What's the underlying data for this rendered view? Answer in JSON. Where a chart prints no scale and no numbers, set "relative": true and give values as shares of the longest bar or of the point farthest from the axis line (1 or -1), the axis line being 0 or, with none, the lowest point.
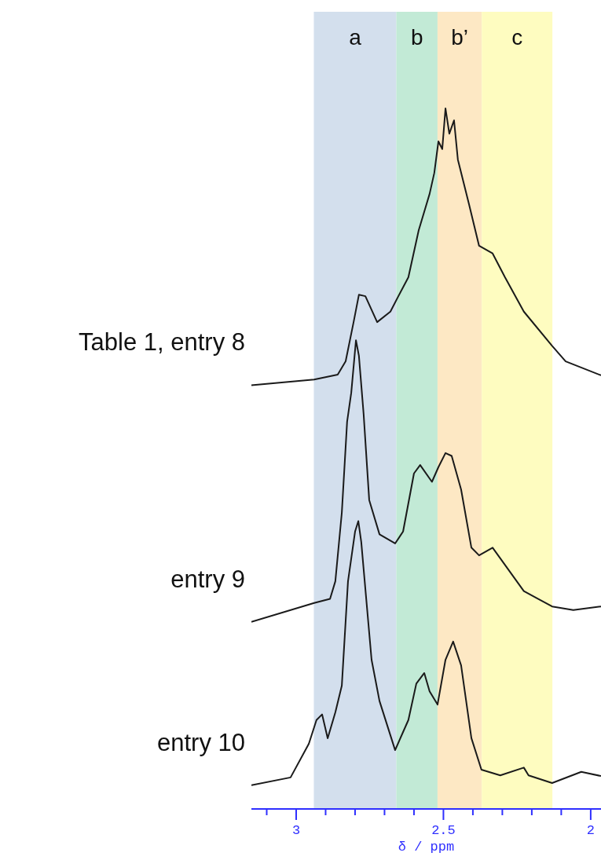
{
  "chart_data": {
    "type": "line",
    "relative": true,
    "xlabel": "δ / ppm",
    "xlim": [
      3.152,
      1.965
    ],
    "xticks": [
      {
        "value": 3.1,
        "label": null
      },
      3,
      {
        "value": 2.9,
        "label": null
      },
      {
        "value": 2.8,
        "label": null
      },
      {
        "value": 2.7,
        "label": null
      },
      {
        "value": 2.6,
        "label": null
      },
      2.5,
      {
        "value": 2.4,
        "label": null
      },
      {
        "value": 2.3,
        "label": null
      },
      {
        "value": 2.2,
        "label": null
      },
      {
        "value": 2.1,
        "label": null
      },
      2
    ],
    "grid": false,
    "legend": false,
    "marker": "none",
    "line_style": "solid",
    "bands": [
      {
        "axis": "x",
        "from": 2.94,
        "to": 2.66,
        "label": "a",
        "color": "#d3dfed"
      },
      {
        "axis": "x",
        "from": 2.66,
        "to": 2.52,
        "label": "b",
        "color": "#c2ead6"
      },
      {
        "axis": "x",
        "from": 2.52,
        "to": 2.37,
        "label": "b’",
        "color": "#fde8c4"
      },
      {
        "axis": "x",
        "from": 2.37,
        "to": 2.13,
        "label": "c",
        "color": "#fefcc0"
      }
    ],
    "series": [
      {
        "name": "Table 1, entry 8",
        "color": "#1a1a1a",
        "x": [
          3.152,
          2.939,
          2.859,
          2.832,
          2.805,
          2.787,
          2.765,
          2.725,
          2.68,
          2.653,
          2.619,
          2.584,
          2.547,
          2.531,
          2.517,
          2.504,
          2.493,
          2.48,
          2.464,
          2.451,
          2.413,
          2.379,
          2.333,
          2.291,
          2.227,
          2.131,
          2.085,
          1.965
        ],
        "values": [
          0.605,
          0.613,
          0.62,
          0.639,
          0.695,
          0.734,
          0.732,
          0.695,
          0.71,
          0.732,
          0.759,
          0.826,
          0.878,
          0.908,
          0.953,
          0.942,
          1.0,
          0.964,
          0.983,
          0.927,
          0.863,
          0.804,
          0.793,
          0.759,
          0.71,
          0.661,
          0.639,
          0.619
        ]
      },
      {
        "name": "entry 9",
        "color": "#1a1a1a",
        "x": [
          3.152,
          2.939,
          2.885,
          2.867,
          2.845,
          2.827,
          2.813,
          2.797,
          2.787,
          2.771,
          2.752,
          2.717,
          2.664,
          2.637,
          2.6,
          2.579,
          2.539,
          2.517,
          2.493,
          2.472,
          2.44,
          2.405,
          2.379,
          2.333,
          2.227,
          2.131,
          2.059,
          1.965
        ],
        "values": [
          0.267,
          0.294,
          0.3,
          0.325,
          0.423,
          0.553,
          0.594,
          0.669,
          0.647,
          0.564,
          0.441,
          0.392,
          0.379,
          0.396,
          0.479,
          0.491,
          0.467,
          0.488,
          0.508,
          0.504,
          0.456,
          0.373,
          0.362,
          0.373,
          0.311,
          0.289,
          0.284,
          0.289
        ]
      },
      {
        "name": "entry 10",
        "color": "#1a1a1a",
        "x": [
          3.152,
          3.019,
          2.957,
          2.931,
          2.912,
          2.893,
          2.867,
          2.845,
          2.824,
          2.8,
          2.789,
          2.779,
          2.744,
          2.717,
          2.664,
          2.619,
          2.592,
          2.565,
          2.547,
          2.52,
          2.493,
          2.467,
          2.44,
          2.405,
          2.371,
          2.307,
          2.227,
          2.211,
          2.131,
          2.032,
          1.965
        ],
        "values": [
          0.034,
          0.045,
          0.093,
          0.127,
          0.135,
          0.101,
          0.138,
          0.176,
          0.325,
          0.396,
          0.411,
          0.381,
          0.213,
          0.154,
          0.084,
          0.127,
          0.179,
          0.194,
          0.168,
          0.149,
          0.213,
          0.239,
          0.205,
          0.101,
          0.056,
          0.048,
          0.059,
          0.048,
          0.037,
          0.053,
          0.047
        ]
      }
    ]
  }
}
